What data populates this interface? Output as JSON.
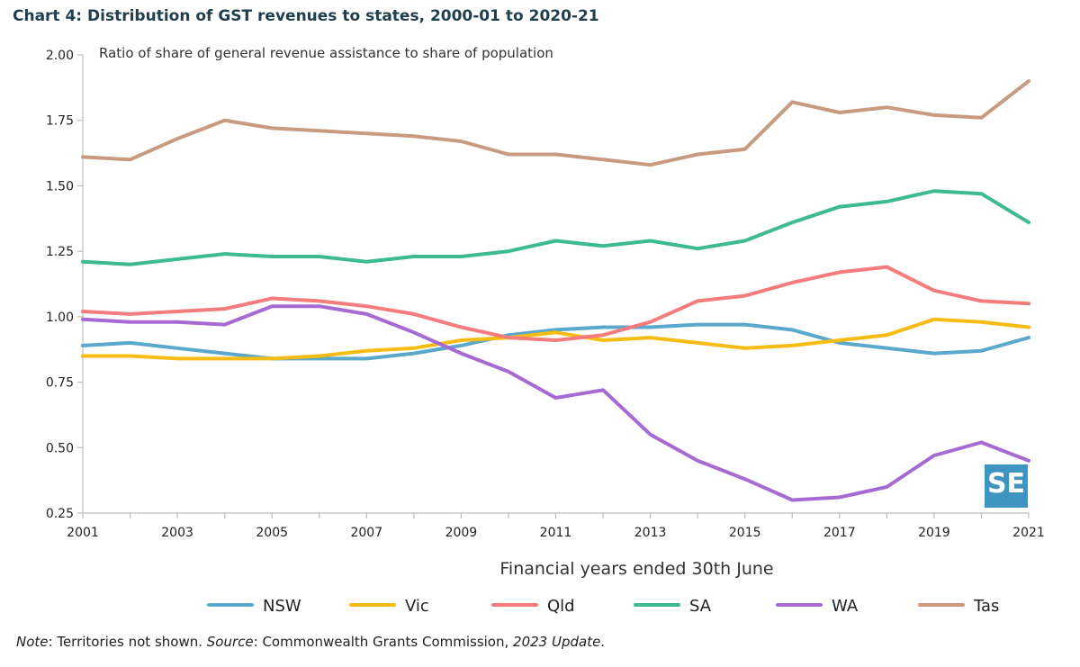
{
  "chart_data": {
    "type": "line",
    "title": "Chart 4: Distribution of GST revenues to states, 2000-01 to 2020-21",
    "subtitle": "Ratio of share of general revenue assistance to share of population",
    "xlabel": "Financial years ended 30th June",
    "ylabel": "",
    "x": [
      2001,
      2002,
      2003,
      2004,
      2005,
      2006,
      2007,
      2008,
      2009,
      2010,
      2011,
      2012,
      2013,
      2014,
      2015,
      2016,
      2017,
      2018,
      2019,
      2020,
      2021
    ],
    "xticks": [
      2001,
      2003,
      2005,
      2007,
      2009,
      2011,
      2013,
      2015,
      2017,
      2019,
      2021
    ],
    "xlim": [
      2001,
      2021
    ],
    "ylim": [
      0.25,
      2.0
    ],
    "yticks": [
      0.25,
      0.5,
      0.75,
      1.0,
      1.25,
      1.5,
      1.75,
      2.0
    ],
    "ytick_labels": [
      "0.25",
      "0.50",
      "0.75",
      "1.00",
      "1.25",
      "1.50",
      "1.75",
      "2.00"
    ],
    "grid": false,
    "legend": "bottom",
    "series": [
      {
        "name": "NSW",
        "color": "#5aa8cc",
        "values": [
          0.89,
          0.9,
          0.88,
          0.86,
          0.84,
          0.84,
          0.84,
          0.86,
          0.89,
          0.93,
          0.95,
          0.96,
          0.96,
          0.97,
          0.97,
          0.95,
          0.9,
          0.88,
          0.86,
          0.87,
          0.92
        ]
      },
      {
        "name": "Vic",
        "color": "#f5bd13",
        "values": [
          0.85,
          0.85,
          0.84,
          0.84,
          0.84,
          0.85,
          0.87,
          0.88,
          0.91,
          0.92,
          0.94,
          0.91,
          0.92,
          0.9,
          0.88,
          0.89,
          0.91,
          0.93,
          0.99,
          0.98,
          0.96
        ]
      },
      {
        "name": "Qld",
        "color": "#f47c7c",
        "values": [
          1.02,
          1.01,
          1.02,
          1.03,
          1.07,
          1.06,
          1.04,
          1.01,
          0.96,
          0.92,
          0.91,
          0.93,
          0.98,
          1.06,
          1.08,
          1.13,
          1.17,
          1.19,
          1.1,
          1.06,
          1.05
        ]
      },
      {
        "name": "SA",
        "color": "#3dba8e",
        "values": [
          1.21,
          1.2,
          1.22,
          1.24,
          1.23,
          1.23,
          1.21,
          1.23,
          1.23,
          1.25,
          1.29,
          1.27,
          1.29,
          1.26,
          1.29,
          1.36,
          1.42,
          1.44,
          1.48,
          1.47,
          1.36
        ]
      },
      {
        "name": "WA",
        "color": "#a76ad2",
        "values": [
          0.99,
          0.98,
          0.98,
          0.97,
          1.04,
          1.04,
          1.01,
          0.94,
          0.86,
          0.79,
          0.69,
          0.72,
          0.55,
          0.45,
          0.38,
          0.3,
          0.31,
          0.35,
          0.47,
          0.52,
          0.45
        ]
      },
      {
        "name": "Tas",
        "color": "#c89b80",
        "values": [
          1.61,
          1.6,
          1.68,
          1.75,
          1.72,
          1.71,
          1.7,
          1.69,
          1.67,
          1.62,
          1.62,
          1.6,
          1.58,
          1.62,
          1.64,
          1.82,
          1.78,
          1.8,
          1.77,
          1.76,
          1.9
        ]
      }
    ]
  },
  "note": {
    "note_label": "Note",
    "note_text": ": Territories not shown. ",
    "source_label": "Source",
    "source_text": ": Commonwealth Grants Commission, ",
    "source_title": "2023 Update",
    "end": "."
  },
  "logo": {
    "text": "SE",
    "icon": "se-logo-icon",
    "color": "#3e95c1"
  }
}
